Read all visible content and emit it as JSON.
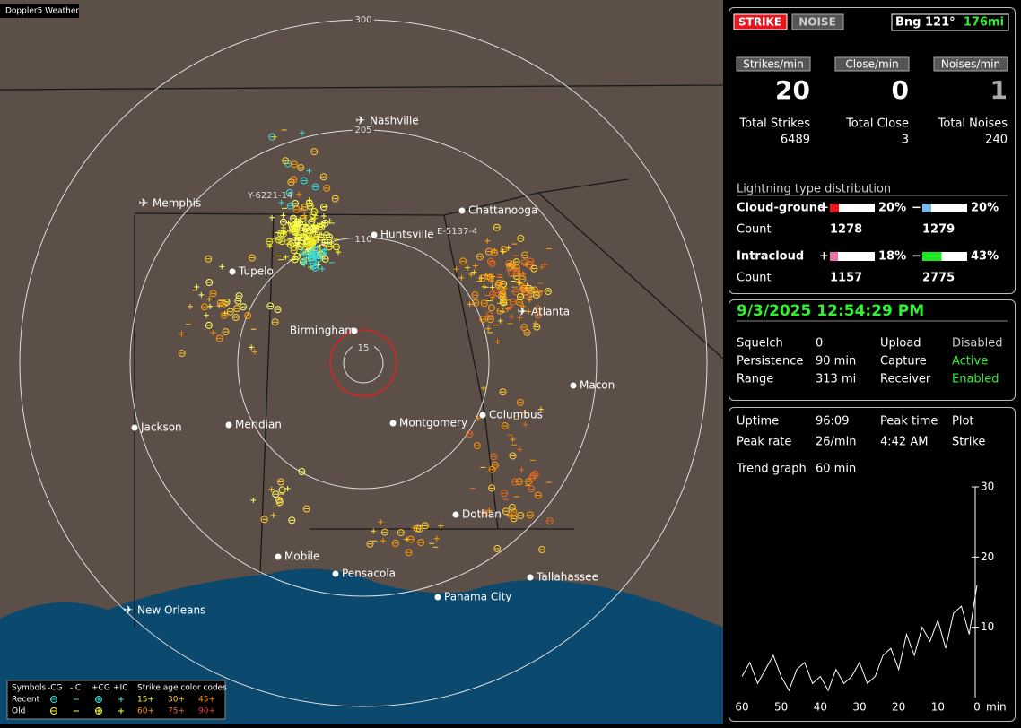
{
  "map": {
    "title": "Doppler5 Weather",
    "cities": [
      "Nashville",
      "Memphis",
      "Chattanooga",
      "Huntsville",
      "Tupelo",
      "Atlanta",
      "Birmingham",
      "Macon",
      "Jackson",
      "Meridian",
      "Montgomery",
      "Columbus",
      "Dothan",
      "Mobile",
      "Pensacola",
      "Tallahassee",
      "Panama City",
      "New Orleans"
    ],
    "ring_labels": [
      "300",
      "205",
      "110",
      "15"
    ],
    "storm_labels": [
      "Y-6221-14",
      "E-5137-4"
    ],
    "legend": {
      "header": [
        "Symbols",
        "-CG",
        "-IC",
        "+CG",
        "+IC",
        "Strike age color codes"
      ],
      "rows": [
        {
          "label": "Recent",
          "ages": [
            "15+",
            "30+",
            "45+"
          ]
        },
        {
          "label": "Old",
          "ages": [
            "60+",
            "75+",
            "90+"
          ]
        }
      ]
    }
  },
  "status": {
    "strike": "STRIKE",
    "noise": "NOISE",
    "bearing": "Bng 121°",
    "distance": "176mi"
  },
  "rates": [
    {
      "label": "Strikes/min",
      "value": 20,
      "total_label": "Total Strikes",
      "total": 6489
    },
    {
      "label": "Close/min",
      "value": 0,
      "total_label": "Total Close",
      "total": 3
    },
    {
      "label": "Noises/min",
      "value": 1,
      "total_label": "Total Noises",
      "total": 240
    }
  ],
  "distribution": {
    "title": "Lightning type distribution",
    "count_label": "Count",
    "types": [
      {
        "name": "Cloud-ground",
        "plus": {
          "sign": "+",
          "value": 20,
          "value_label": "20%",
          "count": 1278,
          "color": "#e8141e"
        },
        "minus": {
          "sign": "−",
          "value": 20,
          "value_label": "20%",
          "count": 1279,
          "color": "#7ab8e8"
        }
      },
      {
        "name": "Intracloud",
        "plus": {
          "sign": "+",
          "value": 18,
          "value_label": "18%",
          "count": 1157,
          "color": "#e870a8"
        },
        "minus": {
          "sign": "−",
          "value": 43,
          "value_label": "43%",
          "count": 2775,
          "color": "#1ee61e"
        }
      }
    ]
  },
  "clock": "9/3/2025 12:54:29 PM",
  "settings": [
    [
      "Squelch",
      "0",
      "Upload",
      "Disabled"
    ],
    [
      "Persistence",
      "90 min",
      "Capture",
      "Active"
    ],
    [
      "Range",
      "313 mi",
      "Receiver",
      "Enabled"
    ]
  ],
  "stats": [
    [
      "Uptime",
      "96:09",
      "Peak time",
      "Plot"
    ],
    [
      "Peak rate",
      "26/min",
      "4:42 AM",
      "Strike"
    ],
    [
      "Trend graph",
      "60 min"
    ]
  ],
  "trend": {
    "x_label": "min",
    "color": "#ffffff",
    "xlim": [
      60,
      0
    ],
    "ylim": [
      0,
      30
    ],
    "xticks": [
      60,
      50,
      40,
      30,
      20,
      10,
      0
    ],
    "yticks": [
      10,
      20,
      30
    ],
    "x": [
      60,
      58,
      56,
      54,
      52,
      50,
      48,
      46,
      44,
      42,
      40,
      38,
      36,
      34,
      32,
      30,
      28,
      26,
      24,
      22,
      20,
      18,
      16,
      14,
      12,
      10,
      8,
      6,
      4,
      2,
      0
    ],
    "values": [
      3,
      5,
      2,
      4,
      6,
      3,
      1,
      4,
      5,
      2,
      3,
      1,
      4,
      2,
      3,
      5,
      2,
      3,
      6,
      7,
      4,
      9,
      6,
      10,
      8,
      11,
      7,
      12,
      13,
      9,
      16
    ]
  }
}
